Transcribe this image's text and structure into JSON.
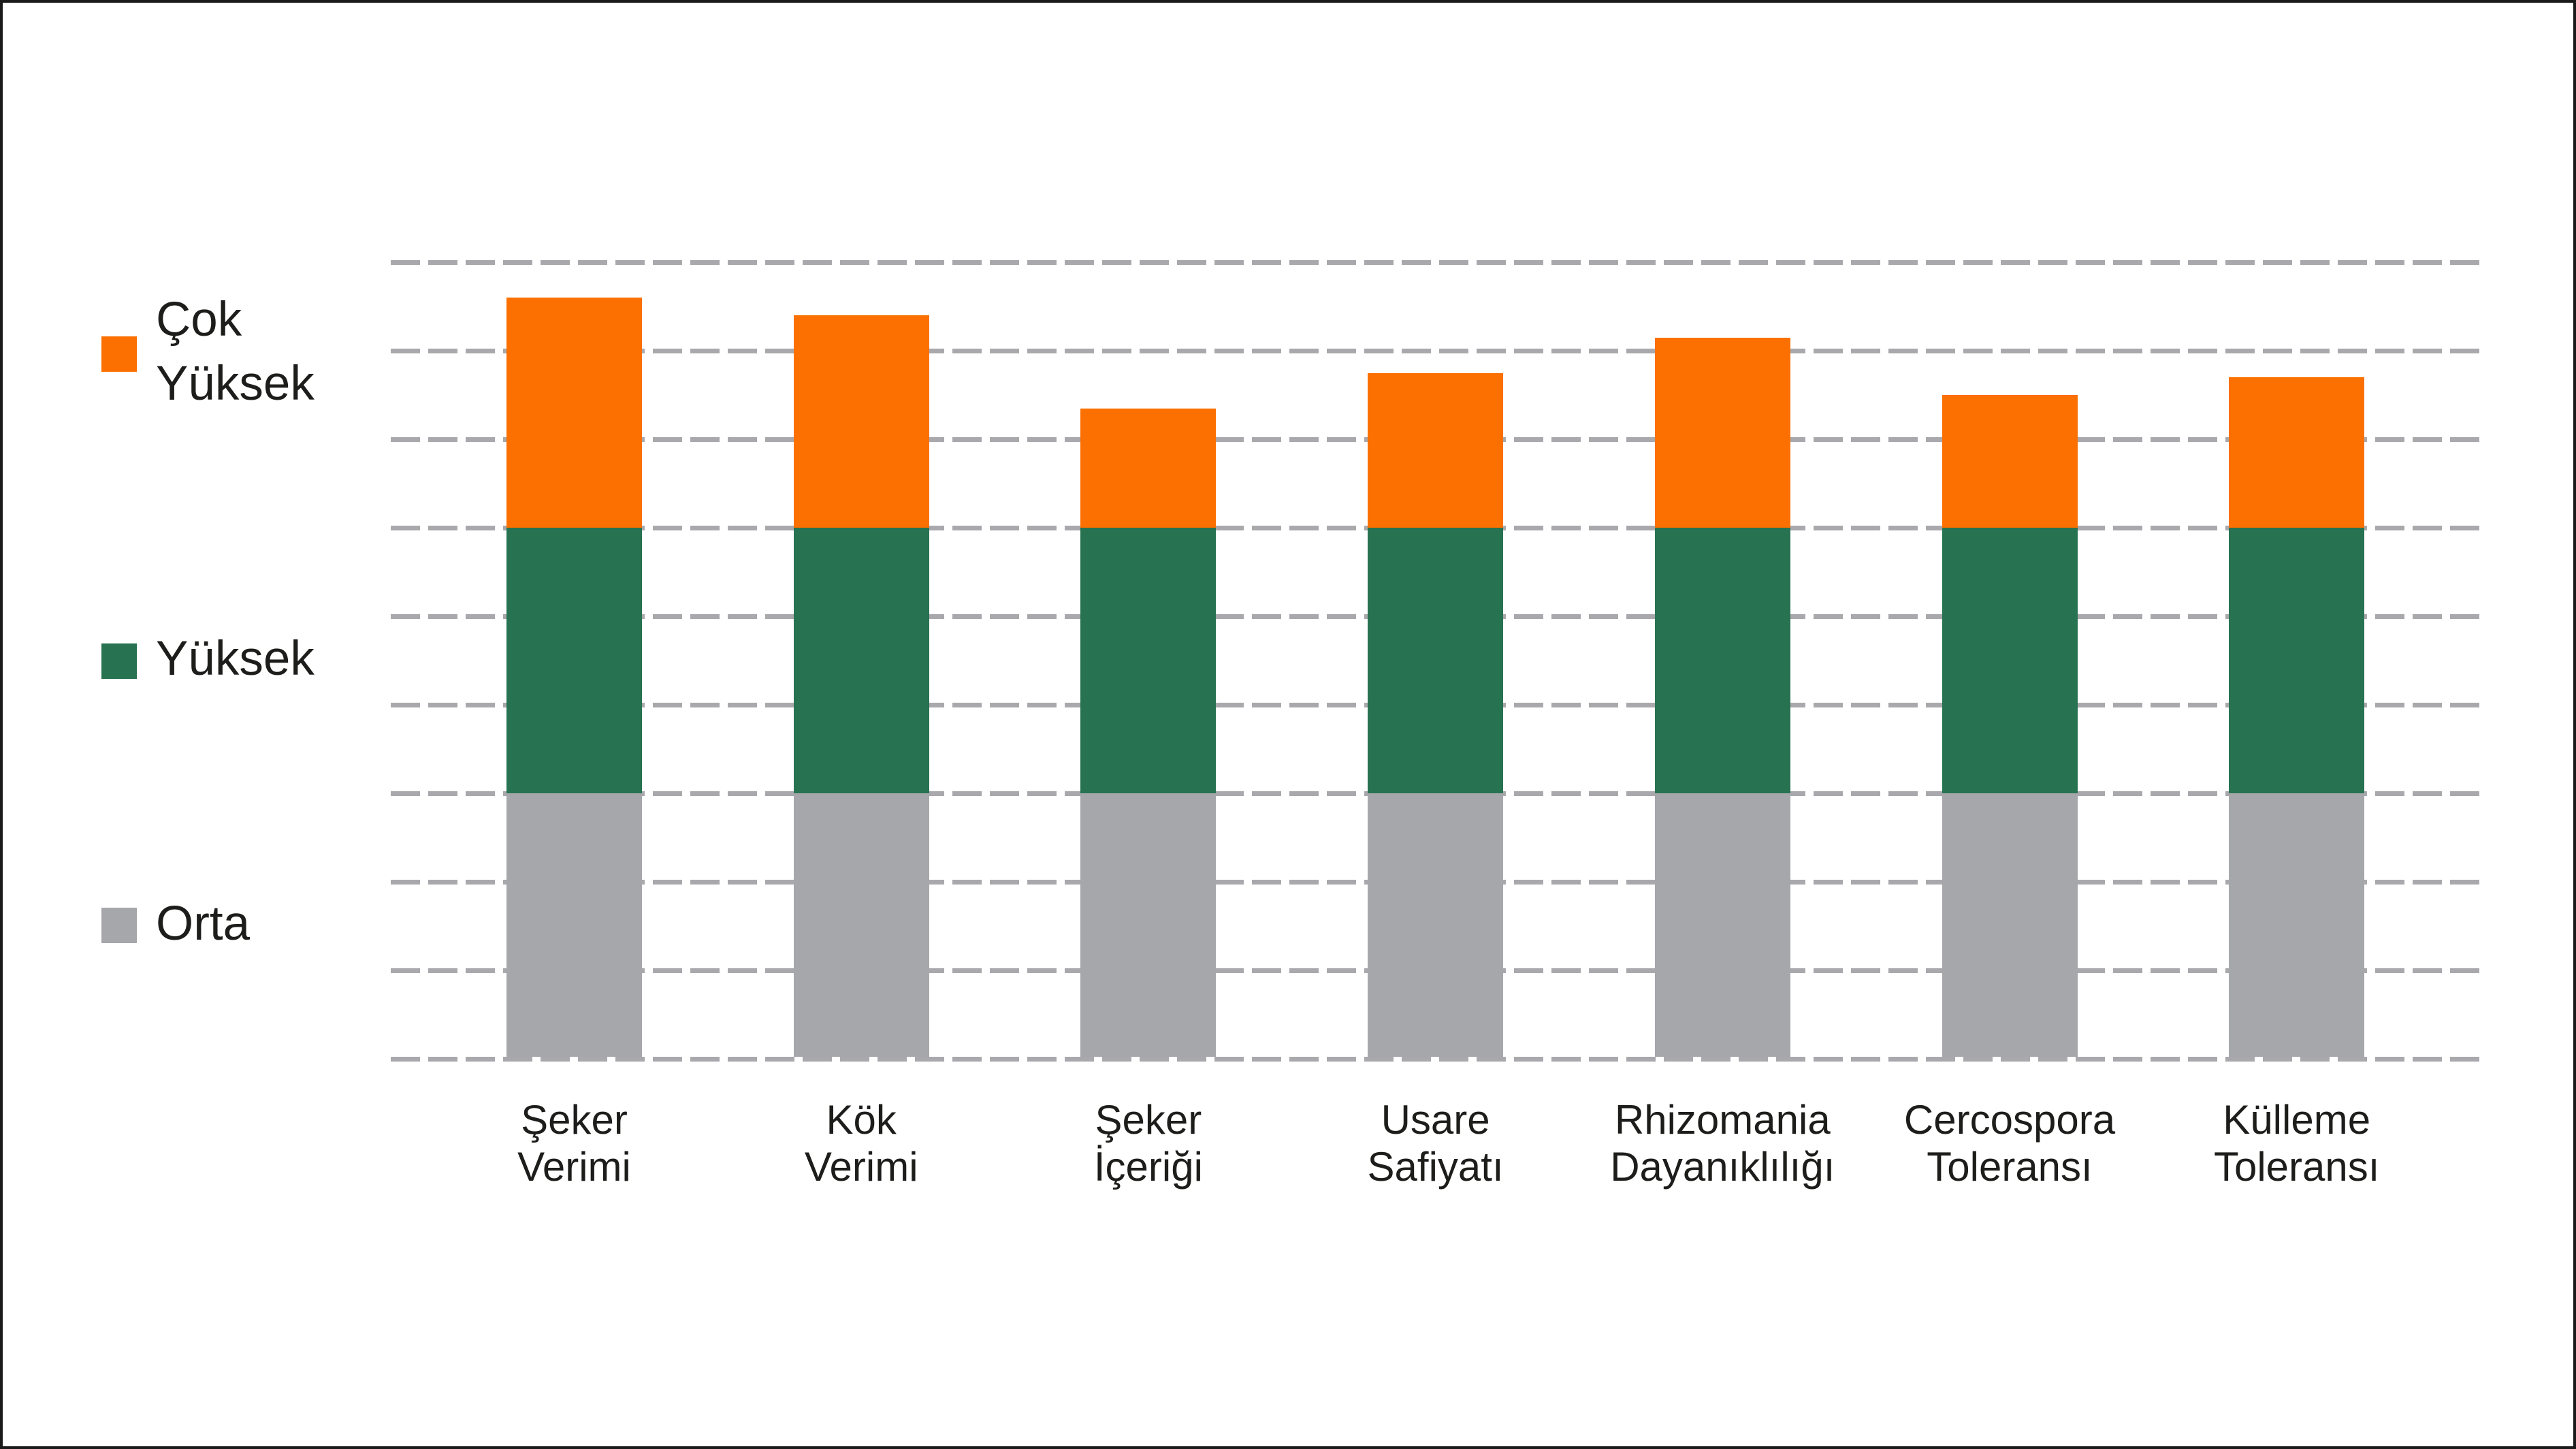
{
  "chart": {
    "title": "",
    "background_color": "#ffffff",
    "frame_color": "#1a1a1a",
    "text_color": "#1d1d1b",
    "gridline_color": "#a9a9ad",
    "legend": {
      "position": "left",
      "items": [
        {
          "key": "cok-yuksek",
          "label": "Çok Yüksek",
          "lines": [
            "Çok",
            "Yüksek"
          ],
          "color": "#fb7000"
        },
        {
          "key": "yuksek",
          "label": "Yüksek",
          "lines": [
            "Yüksek"
          ],
          "color": "#277251"
        },
        {
          "key": "orta",
          "label": "Orta",
          "lines": [
            "Orta"
          ],
          "color": "#a6a7ab"
        }
      ]
    }
  },
  "chart_data": {
    "type": "bar",
    "stacked": true,
    "title": "",
    "xlabel": "",
    "ylabel": "",
    "ylim": [
      0,
      9
    ],
    "grid": {
      "visible": true,
      "style": "dashed",
      "step": 1
    },
    "legend_position": "left",
    "categories": [
      "Şeker Verimi",
      "Kök Verimi",
      "Şeker İçeriği",
      "Usare Safiyatı",
      "Rhizomania Dayanıklılığı",
      "Cercospora Toleransı",
      "Külleme Toleransı"
    ],
    "category_lines": [
      [
        "Şeker",
        "Verimi"
      ],
      [
        "Kök",
        "Verimi"
      ],
      [
        "Şeker",
        "İçeriği"
      ],
      [
        "Usare",
        "Safiyatı"
      ],
      [
        "Rhizomania",
        "Dayanıklılığı"
      ],
      [
        "Cercospora",
        "Toleransı"
      ],
      [
        "Külleme",
        "Toleransı"
      ]
    ],
    "series": [
      {
        "name": "Orta",
        "color": "#a6a7ab",
        "values": [
          3,
          3,
          3,
          3,
          3,
          3,
          3
        ]
      },
      {
        "name": "Yüksek",
        "color": "#277251",
        "values": [
          3,
          3,
          3,
          3,
          3,
          3,
          3
        ]
      },
      {
        "name": "Çok Yüksek",
        "color": "#fb7000",
        "values": [
          2.6,
          2.4,
          1.35,
          1.75,
          2.15,
          1.5,
          1.7
        ]
      }
    ],
    "totals": [
      8.6,
      8.4,
      7.35,
      7.75,
      8.15,
      7.5,
      7.7
    ]
  }
}
